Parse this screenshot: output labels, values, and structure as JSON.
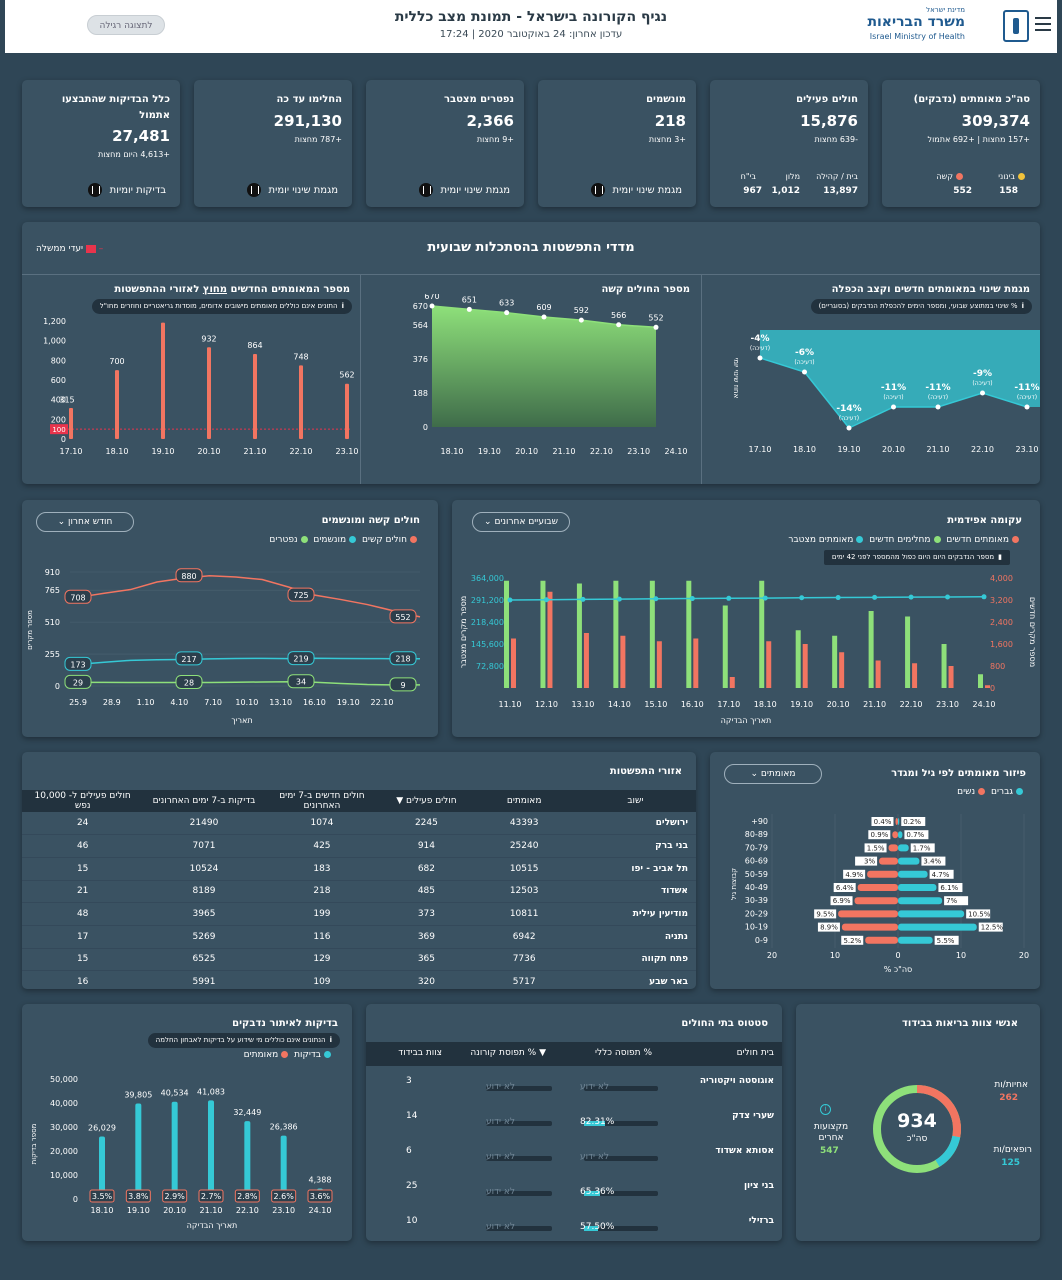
{
  "header": {
    "title": "נגיף הקורונה בישראל - תמונת מצב כללית",
    "updated": "עדכון אחרון: 24 באוקטובר 2020 | 17:24",
    "simple_view": "לתצוגה רגילה",
    "moh_top": "מדינת ישראל",
    "moh_name": "משרד הבריאות",
    "moh_eng": "Israel Ministry of Health"
  },
  "kpis": {
    "confirmed": {
      "title": "סה\"כ מאומתים (נדבקים)",
      "value": "309,374",
      "delta": "+157 מחצות | +692 אתמול",
      "mild_label": "בינוני",
      "mild": "158",
      "severe_label": "קשה",
      "severe": "552"
    },
    "active": {
      "title": "חולים פעילים",
      "value": "15,876",
      "delta": "-639 מחצות",
      "home_label": "בית / קהילה",
      "home": "13,897",
      "hotel_label": "מלון",
      "hotel": "1,012",
      "hosp_label": "בי\"ח",
      "hosp": "967"
    },
    "ventilated": {
      "title": "מונשמים",
      "value": "218",
      "delta": "+3 מחצות",
      "link": "מגמת שינוי יומית"
    },
    "deaths": {
      "title": "נפטרים מצטבר",
      "value": "2,366",
      "delta": "+9 מחצות",
      "link": "מגמת שינוי יומית"
    },
    "recovered": {
      "title": "החלימו עד כה",
      "value": "291,130",
      "delta": "+787 מחצות",
      "link": "מגמת שינוי יומית"
    },
    "tests": {
      "title": "כלל הבדיקות שהתבצעו אתמול",
      "value": "27,481",
      "delta": "+4,613 היום מחצות",
      "link": "בדיקות יומיות"
    }
  },
  "weekly": {
    "title": "מדדי התפשטות בהסתכלות שבועית",
    "goals": "יעדי ממשלה",
    "c1": {
      "title": "מגמת שינוי במאומתים חדשים וקצב הכפלה",
      "note": "% שינוי במתוצע שבועי, ומספר הימים להכפלת הנדבקים (בסוגריים)",
      "ylabel": "אחוז שינוי יומי",
      "dates": [
        "17.10",
        "18.10",
        "19.10",
        "20.10",
        "21.10",
        "22.10",
        "23.10"
      ],
      "values": [
        -4,
        -6,
        -14,
        -11,
        -11,
        -9,
        -11
      ],
      "labels": [
        "-4%",
        "-6%",
        "-14%",
        "-11%",
        "-11%",
        "-9%",
        "-11%"
      ],
      "sub": "(דעיכה)"
    },
    "c2": {
      "title": "מספר החולים קשה",
      "dates": [
        "18.10",
        "19.10",
        "20.10",
        "21.10",
        "22.10",
        "23.10",
        "24.10"
      ],
      "values": [
        670,
        651,
        633,
        609,
        592,
        566,
        552
      ],
      "yticks": [
        0,
        188,
        376,
        564,
        670
      ]
    },
    "c3": {
      "title_a": "מספר המאומתים החדשים ",
      "title_b": "מחוץ",
      "title_c": " לאזורי ההתפשטות",
      "note": "התונים אינם כוללים מאומתים מישובים אדומים, מוסדות גריאטריים וחוזרים מחו\"ל",
      "dates": [
        "17.10",
        "18.10",
        "19.10",
        "20.10",
        "21.10",
        "22.10",
        "23.10"
      ],
      "values": [
        315,
        700,
        1183,
        932,
        864,
        748,
        562
      ],
      "yticks": [
        0,
        200,
        400,
        600,
        800,
        1000,
        1200
      ],
      "ytick_labels": [
        "0",
        "200",
        "400",
        "600",
        "800",
        "1,000",
        "1,200"
      ],
      "goal": "100"
    }
  },
  "severe_chart": {
    "title": "חולים קשה ומונשמים",
    "dropdown": "חודש אחרון",
    "legend": {
      "severe": "חולים קשים",
      "vent": "מונשמים",
      "dead": "נפטרים"
    },
    "ylabel": "מספר מקרים",
    "xlabel": "תאריך",
    "dates": [
      "25.9",
      "28.9",
      "1.10",
      "4.10",
      "7.10",
      "10.10",
      "13.10",
      "16.10",
      "19.10",
      "22.10"
    ],
    "yticks": [
      0,
      255,
      510,
      765,
      910
    ],
    "severe": [
      708,
      740,
      770,
      830,
      860,
      880,
      870,
      850,
      790,
      725,
      690,
      650,
      600,
      552
    ],
    "vent": [
      173,
      190,
      205,
      210,
      212,
      217,
      220,
      221,
      219,
      222,
      220,
      219,
      218,
      218
    ],
    "dead": [
      29,
      29,
      28,
      28,
      28,
      28,
      30,
      32,
      34,
      30,
      20,
      12,
      9,
      9
    ],
    "callouts": {
      "s": [
        "708",
        "880",
        "725",
        "552"
      ],
      "v": [
        "173",
        "217",
        "219",
        "218"
      ],
      "d": [
        "29",
        "28",
        "34",
        "9"
      ]
    }
  },
  "epi": {
    "title": "עקומה אפידמית",
    "dropdown": "שבועיים אחרונים",
    "legend": {
      "cum": "מאומתים מצטבר",
      "rec": "מחלימים חדשים",
      "new": "מאומתים חדשים"
    },
    "note": "מספר הנדבקים היום היום כפול מהמספר לפני 42 ימים",
    "yl": "מספר מקרים מצטבר",
    "yr": "מספר מקרים חדשים",
    "xlabel": "תאריך הבדיקה",
    "dates": [
      "11.10",
      "12.10",
      "13.10",
      "14.10",
      "15.10",
      "16.10",
      "17.10",
      "18.10",
      "19.10",
      "20.10",
      "21.10",
      "22.10",
      "23.10",
      "24.10"
    ],
    "recovered": [
      3900,
      3900,
      3800,
      3900,
      3900,
      3900,
      3000,
      3900,
      2100,
      1900,
      2800,
      2600,
      1600,
      500
    ],
    "new": [
      1800,
      3500,
      2000,
      1900,
      1700,
      1800,
      400,
      1700,
      1600,
      1300,
      1000,
      900,
      800,
      100
    ],
    "cum": [
      291200,
      292000,
      293200,
      294000,
      295200,
      296000,
      296800,
      297600,
      298500,
      299300,
      300000,
      300800,
      301200,
      301800
    ],
    "yl_ticks": [
      72800,
      145600,
      218400,
      291200,
      364000
    ],
    "yl_labels": [
      "72,800",
      "145,600",
      "218,400",
      "291,200",
      "364,000"
    ],
    "yr_ticks": [
      0,
      800,
      1600,
      2400,
      3200,
      4000
    ],
    "yr_labels": [
      "0",
      "800",
      "1,600",
      "2,400",
      "3,200",
      "4,000"
    ]
  },
  "age": {
    "title": "פיזור מאומתים לפי גיל ומגדר",
    "dropdown": "מאומתים",
    "legend": {
      "men": "גברים",
      "women": "נשים"
    },
    "xlabel": "% סה\"כ",
    "ylabel": "קבוצות גיל",
    "rows": [
      {
        "g": "+90",
        "w": 0.4,
        "m": 0.2
      },
      {
        "g": "80-89",
        "w": 0.9,
        "m": 0.7
      },
      {
        "g": "70-79",
        "w": 1.5,
        "m": 1.7
      },
      {
        "g": "60-69",
        "w": 3,
        "m": 3.4
      },
      {
        "g": "50-59",
        "w": 4.9,
        "m": 4.7
      },
      {
        "g": "40-49",
        "w": 6.4,
        "m": 6.1
      },
      {
        "g": "30-39",
        "w": 6.9,
        "m": 7
      },
      {
        "g": "20-29",
        "w": 9.5,
        "m": 10.5
      },
      {
        "g": "10-19",
        "w": 8.9,
        "m": 12.5
      },
      {
        "g": "0-9",
        "w": 5.2,
        "m": 5.5
      }
    ],
    "xticks": [
      "20",
      "10",
      "0",
      "10",
      "20"
    ]
  },
  "areas": {
    "title": "אזורי התפשטות",
    "headers": [
      "ישוב",
      "מאומתים",
      "חולים פעילים",
      "חולים חדשים ב-7 ימים האחרונים",
      "בדיקות ב-7 ימים האחרונים",
      "חולים פעילים ל- 10,000 נפש"
    ],
    "rows": [
      [
        "ירושלים",
        "43393",
        "2245",
        "1074",
        "21490",
        "24"
      ],
      [
        "בני ברק",
        "25240",
        "914",
        "425",
        "7071",
        "46"
      ],
      [
        "תל אביב - יפו",
        "10515",
        "682",
        "183",
        "10524",
        "15"
      ],
      [
        "אשדוד",
        "12503",
        "485",
        "218",
        "8189",
        "21"
      ],
      [
        "מודיעין עילית",
        "10811",
        "373",
        "199",
        "3965",
        "48"
      ],
      [
        "נתניה",
        "6942",
        "369",
        "116",
        "5269",
        "17"
      ],
      [
        "פתח תקווה",
        "7736",
        "365",
        "129",
        "6525",
        "15"
      ],
      [
        "באר שבע",
        "5717",
        "320",
        "109",
        "5991",
        "16"
      ]
    ]
  },
  "staff": {
    "title": "אנשי צוות בריאות בבידוד",
    "total": "934",
    "total_label": "סה\"כ",
    "nurses_label": "אחיות/ות",
    "nurses": "262",
    "doctors_label": "רופאים/ות",
    "doctors": "125",
    "other_label": "מקצועות אחרים",
    "other": "547"
  },
  "hospitals": {
    "title": "סטטוס בתי החולים",
    "headers": [
      "בית חולים",
      "% תפוסה כללי",
      "% תפוסת קורונה",
      "צוות בבידוד"
    ],
    "unknown": "לא ידוע",
    "rows": [
      {
        "name": "אוגוסטה ויקטוריה",
        "occ": "",
        "occ_v": 0,
        "staff": "3"
      },
      {
        "name": "שערי צדק",
        "occ": "82.31%",
        "occ_v": 82.31,
        "staff": "14"
      },
      {
        "name": "אסותא אשדוד",
        "occ": "",
        "occ_v": 0,
        "staff": "6"
      },
      {
        "name": "בני ציון",
        "occ": "65.36%",
        "occ_v": 65.36,
        "staff": "25"
      },
      {
        "name": "ברזילי",
        "occ": "57.50%",
        "occ_v": 57.5,
        "staff": "10"
      }
    ]
  },
  "tracing": {
    "title": "בדיקות לאיתור נדבקים",
    "note": "הנתונים אינם כוללים מי שידוע על בדיקות לאבחון החלמה",
    "legend": {
      "tests": "בדיקות",
      "pos": "מאומתים"
    },
    "ylabel": "מספר בדיקות",
    "xlabel": "תאריך הבדיקה",
    "dates": [
      "18.10",
      "19.10",
      "20.10",
      "21.10",
      "22.10",
      "23.10",
      "24.10"
    ],
    "values": [
      26029,
      39805,
      40534,
      41083,
      32449,
      26386,
      4388
    ],
    "labels": [
      "26,029",
      "39,805",
      "40,534",
      "41,083",
      "32,449",
      "26,386",
      "4,388"
    ],
    "pct": [
      "3.5%",
      "3.8%",
      "2.9%",
      "2.7%",
      "2.8%",
      "2.6%",
      "3.6%"
    ],
    "yticks": [
      0,
      10000,
      20000,
      30000,
      40000,
      50000
    ],
    "ytick_labels": [
      "0",
      "10,000",
      "20,000",
      "30,000",
      "40,000",
      "50,000"
    ]
  },
  "colors": {
    "teal": "#35c9d6",
    "green": "#8ee07a",
    "salmon": "#f27561",
    "grid": "#4d6474"
  }
}
